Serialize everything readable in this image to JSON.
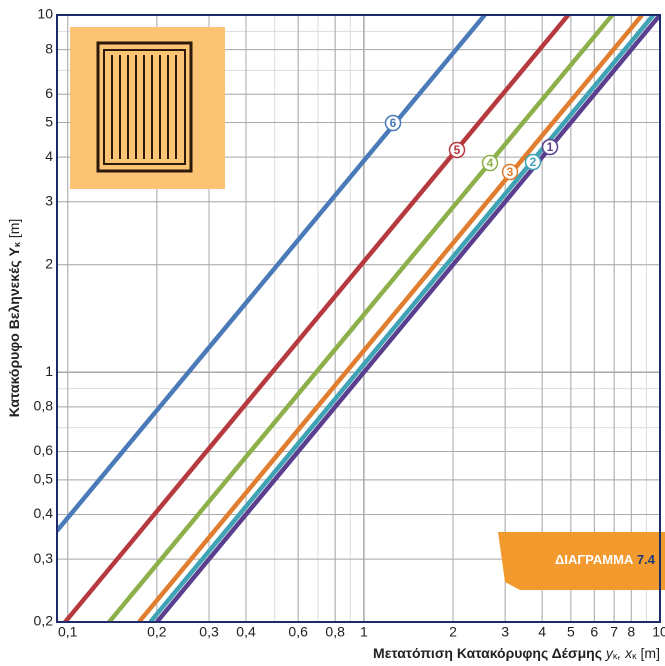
{
  "chart_data": {
    "type": "line",
    "log_x": true,
    "log_y": true,
    "grid": true,
    "x_label": [
      "Μετατόπιση Κατακόρυφης Δέσμης ",
      "y",
      "κ",
      ", x",
      "κ",
      " [m]"
    ],
    "y_label": [
      "Κατακόρυφο Βεληνεκές Y",
      "κ",
      " [m]"
    ],
    "badge": [
      "ΔΙΑΓΡΑΜΜΑ ",
      "7.4"
    ],
    "xlim": [
      0.092,
      10
    ],
    "ylim": [
      0.2,
      10
    ],
    "xticks": [
      {
        "value": 0.1,
        "label": "0,1"
      },
      {
        "value": 0.2,
        "label": "0,2"
      },
      {
        "value": 0.3,
        "label": "0,3"
      },
      {
        "value": 0.4,
        "label": "0,4"
      },
      {
        "value": 0.6,
        "label": "0,6"
      },
      {
        "value": 0.8,
        "label": "0,8"
      },
      1,
      2,
      3,
      4,
      5,
      6,
      7,
      8,
      10
    ],
    "yticks": [
      {
        "value": 0.2,
        "label": "0,2"
      },
      {
        "value": 0.3,
        "label": "0,3"
      },
      {
        "value": 0.4,
        "label": "0,4"
      },
      {
        "value": 0.5,
        "label": "0,5"
      },
      {
        "value": 0.6,
        "label": "0,6"
      },
      {
        "value": 0.8,
        "label": "0,8"
      },
      1,
      2,
      3,
      4,
      5,
      6,
      8,
      10
    ],
    "series": [
      {
        "name": "1",
        "color": "#5b3f8f",
        "x": [
          0.2,
          10
        ],
        "values": [
          0.2,
          10
        ]
      },
      {
        "name": "2",
        "color": "#3fa3b5",
        "x": [
          0.19,
          9.5
        ],
        "values": [
          0.2,
          10
        ]
      },
      {
        "name": "3",
        "color": "#e07d2e",
        "x": [
          0.174,
          8.7
        ],
        "values": [
          0.2,
          10
        ]
      },
      {
        "name": "4",
        "color": "#8db04a",
        "x": [
          0.138,
          6.9
        ],
        "values": [
          0.2,
          10
        ]
      },
      {
        "name": "5",
        "color": "#b5393f",
        "x": [
          0.098,
          4.9
        ],
        "values": [
          0.2,
          10
        ]
      },
      {
        "name": "6",
        "color": "#4a7ab8",
        "x": [
          0.092,
          2.56
        ],
        "values": [
          0.36,
          10
        ]
      }
    ]
  }
}
